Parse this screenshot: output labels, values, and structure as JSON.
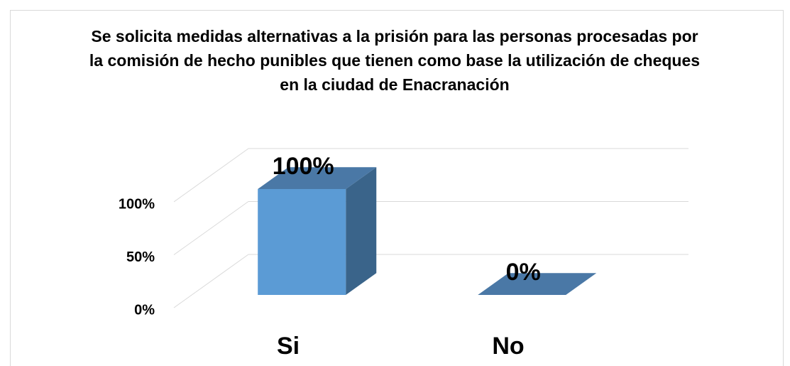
{
  "chart_data": {
    "type": "bar3d",
    "title": "Se solicita medidas alternativas a la prisión para las personas procesadas por la comisión de hecho punibles que tienen como base la utilización de cheques en la ciudad de Enacranación",
    "categories": [
      "Si",
      "No"
    ],
    "values": [
      100,
      0
    ],
    "value_labels": [
      "100%",
      "0%"
    ],
    "ylim": [
      0,
      100
    ],
    "yticks": [
      {
        "value": 0,
        "label": "0%"
      },
      {
        "value": 50,
        "label": "50%"
      },
      {
        "value": 100,
        "label": "100%"
      }
    ],
    "color": "#5b9bd5",
    "grid": true
  }
}
